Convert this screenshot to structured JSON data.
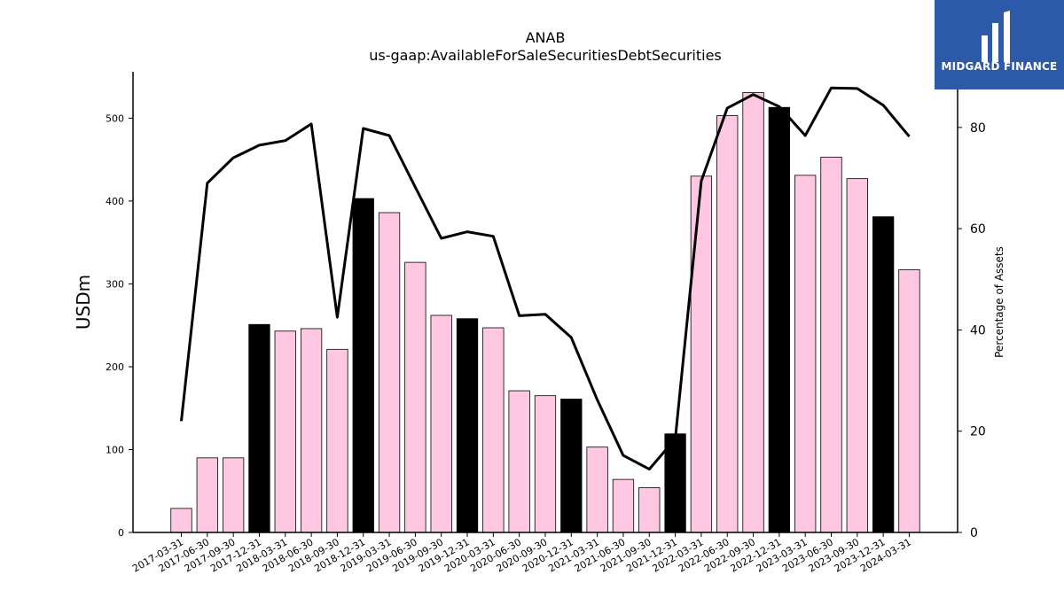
{
  "logo": {
    "text": "MIDGARD FINANCE",
    "bg_color": "#2d5aa8"
  },
  "chart_data": {
    "type": "bar",
    "title": "ANAB",
    "subtitle": "us-gaap:AvailableForSaleSecuritiesDebtSecurities",
    "ylabel": "USDm",
    "y2label": "Percentage of Assets",
    "ylim": [
      0,
      556
    ],
    "y2lim": [
      0,
      91
    ],
    "yticks": [
      0,
      100,
      200,
      300,
      400,
      500
    ],
    "y2ticks": [
      0,
      20,
      40,
      60,
      80
    ],
    "categories": [
      "2017-03-31",
      "2017-06-30",
      "2017-09-30",
      "2017-12-31",
      "2018-03-31",
      "2018-06-30",
      "2018-09-30",
      "2018-12-31",
      "2019-03-31",
      "2019-06-30",
      "2019-09-30",
      "2019-12-31",
      "2020-03-31",
      "2020-06-30",
      "2020-09-30",
      "2020-12-31",
      "2021-03-31",
      "2021-06-30",
      "2021-09-30",
      "2021-12-31",
      "2022-03-31",
      "2022-06-30",
      "2022-09-30",
      "2022-12-31",
      "2023-03-31",
      "2023-06-30",
      "2023-09-30",
      "2023-12-31",
      "2024-03-31"
    ],
    "series": [
      {
        "type": "bar",
        "axis": "left",
        "values": [
          29,
          90,
          90,
          251,
          243,
          246,
          221,
          403,
          386,
          326,
          262,
          258,
          247,
          171,
          165,
          161,
          103,
          64,
          54,
          119,
          430,
          503,
          531,
          513,
          431,
          453,
          427,
          381,
          317
        ],
        "colors": {
          "default": "#ffc8e2",
          "year_end": "#000000"
        }
      },
      {
        "type": "line",
        "axis": "right",
        "color": "#000000",
        "values": [
          22,
          69,
          74,
          76.5,
          77.4,
          80.7,
          42.5,
          79.8,
          78.4,
          68.2,
          58.1,
          59.4,
          58.5,
          42.8,
          43.1,
          38.5,
          26.2,
          15.2,
          12.5,
          18.5,
          69.4,
          83.8,
          86.5,
          84.1,
          78.4,
          87.8,
          87.7,
          84.4,
          78.2
        ]
      }
    ]
  }
}
